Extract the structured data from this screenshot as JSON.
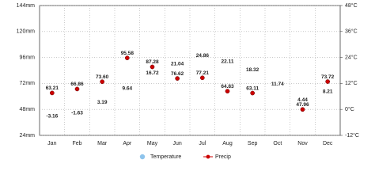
{
  "chart_data": {
    "type": "line",
    "categories": [
      "Jan",
      "Feb",
      "Mar",
      "Apr",
      "May",
      "Jun",
      "Jul",
      "Aug",
      "Sep",
      "Oct",
      "Nov",
      "Dec"
    ],
    "series": [
      {
        "name": "Temperature",
        "color": "#8ec4ec",
        "axis": "y2",
        "values": [
          -3.16,
          -1.63,
          3.19,
          9.64,
          16.72,
          21.04,
          24.86,
          22.11,
          18.32,
          11.74,
          4.44,
          8.21
        ]
      },
      {
        "name": "Precip",
        "color": "#cc0000",
        "values": [
          63.21,
          66.86,
          73.6,
          95.58,
          87.28,
          76.62,
          77.21,
          64.83,
          63.11,
          null,
          47.96,
          73.72
        ],
        "value_labels": [
          "63.21",
          "66.86",
          "73.60",
          "95.58",
          "87.28",
          "76.62",
          "77.21",
          "64.83",
          "63.11",
          null,
          "47.96",
          "73.72"
        ]
      }
    ],
    "ylim": [
      24,
      144
    ],
    "yticks": [
      {
        "value": 24,
        "label": "24mm"
      },
      {
        "value": 48,
        "label": "48mm"
      },
      {
        "value": 72,
        "label": "72mm"
      },
      {
        "value": 96,
        "label": "96mm"
      },
      {
        "value": 120,
        "label": "120mm"
      },
      {
        "value": 144,
        "label": "144mm"
      }
    ],
    "y2lim": [
      -12,
      48
    ],
    "y2ticks": [
      {
        "value": -12,
        "label": "-12°C"
      },
      {
        "value": 0,
        "label": "0°C"
      },
      {
        "value": 12,
        "label": "12°C"
      },
      {
        "value": 24,
        "label": "24°C"
      },
      {
        "value": 36,
        "label": "36°C"
      },
      {
        "value": 48,
        "label": "48°C"
      }
    ],
    "grid": true
  }
}
